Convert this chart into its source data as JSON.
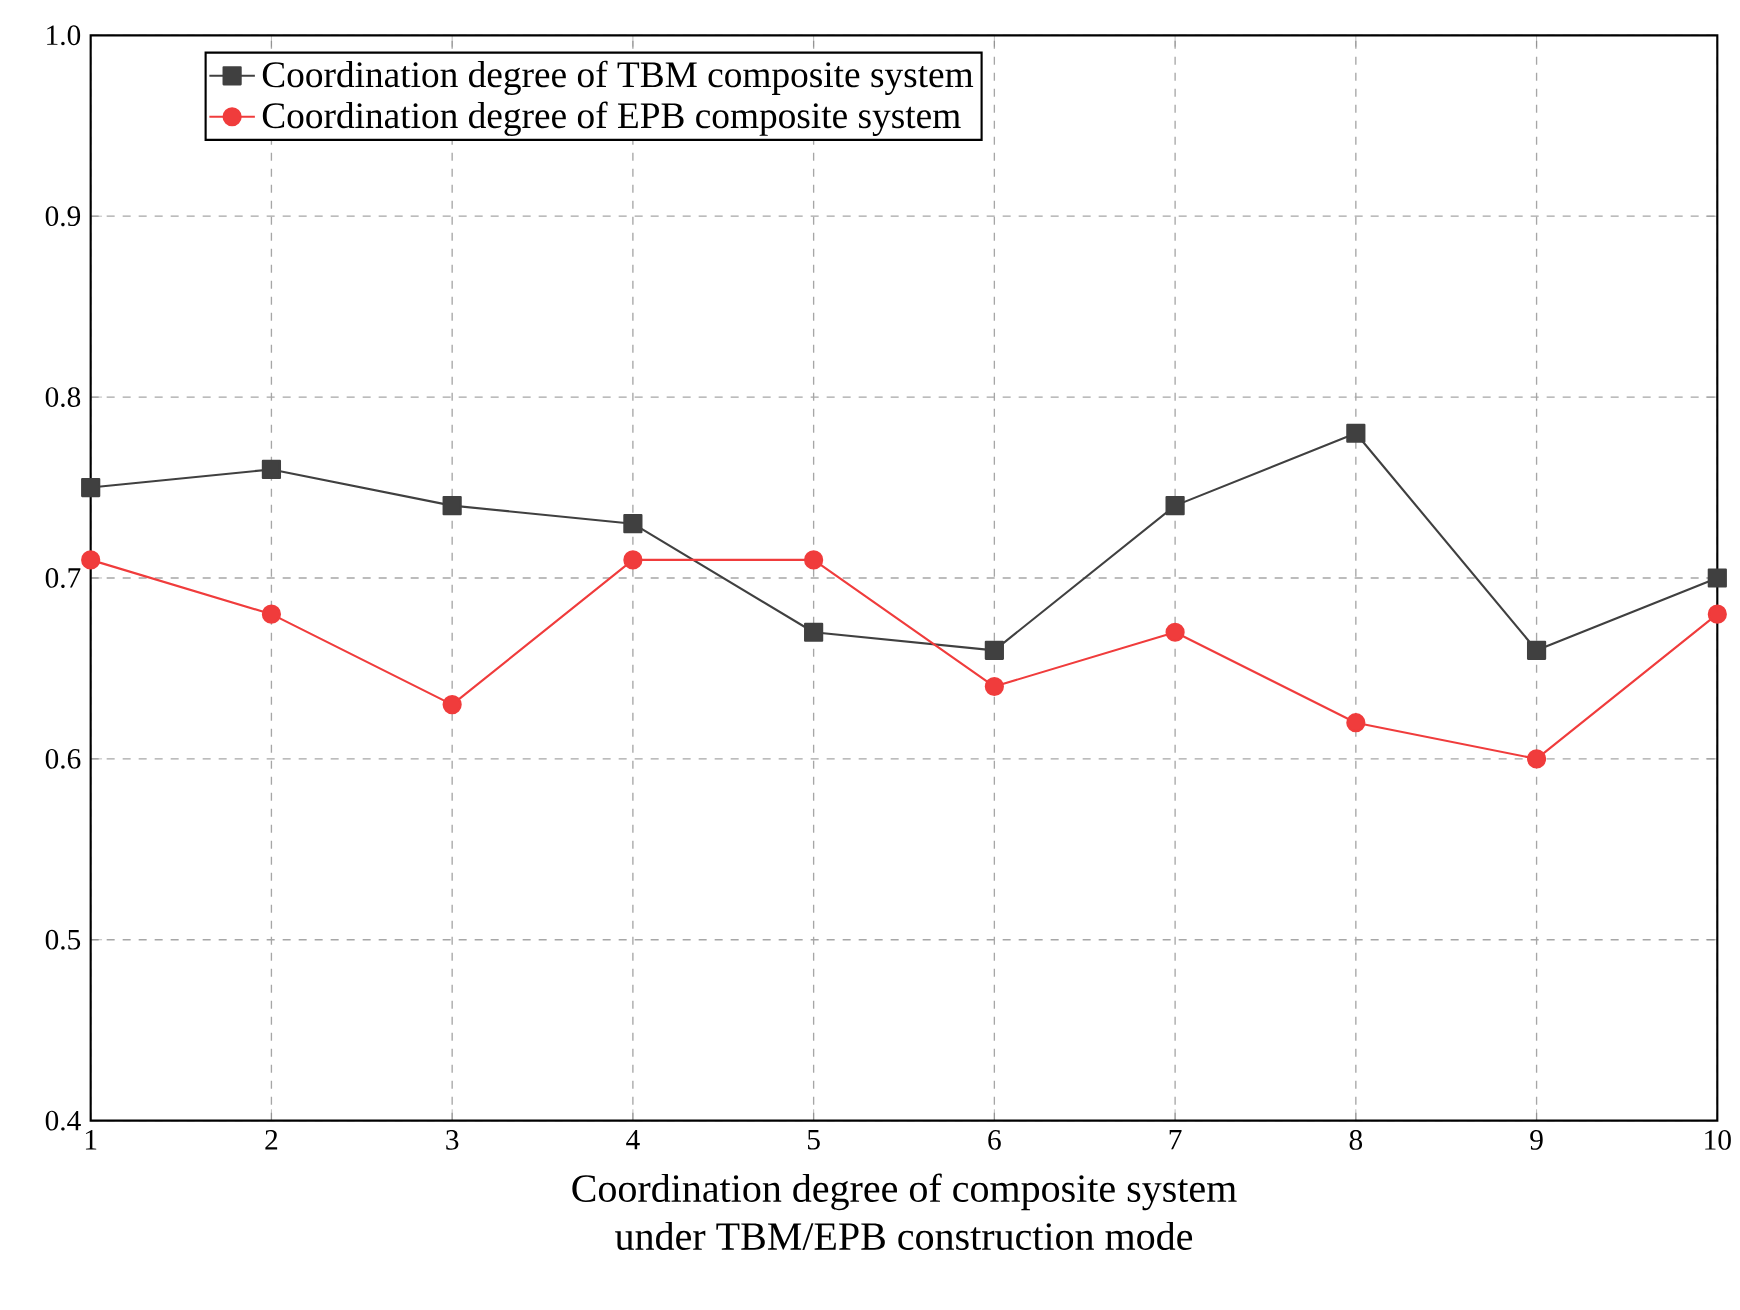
{
  "chart_data": {
    "type": "line",
    "xlabel": "Coordination degree of composite system\nunder TBM/EPB construction mode",
    "x": [
      1,
      2,
      3,
      4,
      5,
      6,
      7,
      8,
      9,
      10
    ],
    "series": [
      {
        "name": "Coordination degree of TBM composite system",
        "color": "#404040",
        "marker": "square",
        "values": [
          0.75,
          0.76,
          0.74,
          0.73,
          0.67,
          0.66,
          0.74,
          0.78,
          0.66,
          0.7
        ]
      },
      {
        "name": "Coordination degree of EPB composite system",
        "color": "#f03c3c",
        "marker": "circle",
        "values": [
          0.71,
          0.68,
          0.63,
          0.71,
          0.71,
          0.64,
          0.67,
          0.62,
          0.6,
          0.68
        ]
      }
    ],
    "xlim": [
      1,
      10
    ],
    "xticks": [
      1,
      2,
      3,
      4,
      5,
      6,
      7,
      8,
      9,
      10
    ],
    "ylim": [
      0.4,
      1.0
    ],
    "yticks": [
      0.4,
      0.5,
      0.6,
      0.7,
      0.8,
      0.9,
      {
        "value": 1.0,
        "label": "1.0"
      }
    ],
    "grid": true,
    "legend": "top left",
    "line_style": "solid"
  }
}
